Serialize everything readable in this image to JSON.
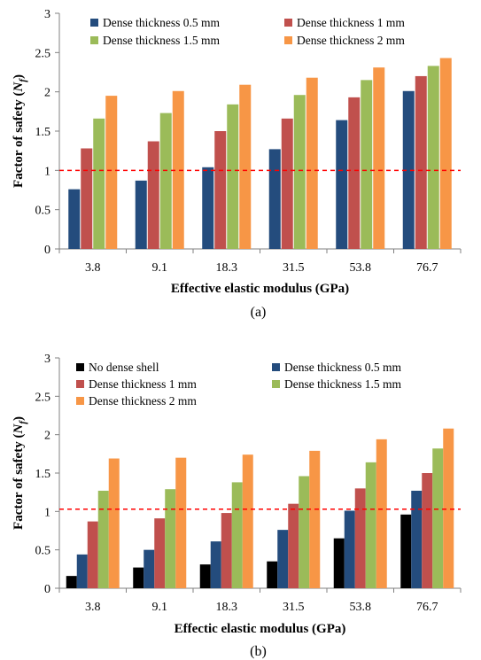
{
  "chart_data": [
    {
      "type": "bar",
      "title": "",
      "caption": "(a)",
      "xlabel": "Effective elastic modulus (GPa)",
      "ylabel_main": "Factor of safety (",
      "ylabel_symbol": "N",
      "ylabel_sub": "f",
      "ylabel_end": ")",
      "ylim": [
        0,
        3
      ],
      "yticks": [
        "0",
        "0.5",
        "1",
        "1.5",
        "2",
        "2.5",
        "3"
      ],
      "categories": [
        "3.8",
        "9.1",
        "18.3",
        "31.5",
        "53.8",
        "76.7"
      ],
      "reference_line": 1.0,
      "legend_position": "top",
      "series": [
        {
          "name": "Dense thickness 0.5 mm",
          "color": "#244C7D",
          "values": [
            0.76,
            0.87,
            1.04,
            1.27,
            1.64,
            2.01
          ]
        },
        {
          "name": "Dense thickness 1 mm",
          "color": "#C0504D",
          "values": [
            1.28,
            1.37,
            1.5,
            1.66,
            1.93,
            2.2
          ]
        },
        {
          "name": "Dense thickness 1.5 mm",
          "color": "#9BBB59",
          "values": [
            1.66,
            1.73,
            1.84,
            1.96,
            2.15,
            2.33
          ]
        },
        {
          "name": "Dense thickness 2 mm",
          "color": "#F79646",
          "values": [
            1.95,
            2.01,
            2.09,
            2.18,
            2.31,
            2.43
          ]
        }
      ]
    },
    {
      "type": "bar",
      "title": "",
      "caption": "(b)",
      "xlabel": "Effectic elastic modulus (GPa)",
      "ylabel_main": "Factor of safety (",
      "ylabel_symbol": "N",
      "ylabel_sub": "f",
      "ylabel_end": ")",
      "ylim": [
        0,
        3
      ],
      "yticks": [
        "0",
        "0.5",
        "1",
        "1.5",
        "2",
        "2.5",
        "3"
      ],
      "categories": [
        "3.8",
        "9.1",
        "18.3",
        "31.5",
        "53.8",
        "76.7"
      ],
      "reference_line": 1.03,
      "legend_position": "top",
      "series": [
        {
          "name": "No dense shell",
          "color": "#000000",
          "values": [
            0.16,
            0.27,
            0.31,
            0.35,
            0.65,
            0.96
          ]
        },
        {
          "name": "Dense thickness 0.5 mm",
          "color": "#244C7D",
          "values": [
            0.44,
            0.5,
            0.61,
            0.76,
            1.01,
            1.27
          ]
        },
        {
          "name": "Dense thickness 1 mm",
          "color": "#C0504D",
          "values": [
            0.87,
            0.91,
            0.98,
            1.1,
            1.3,
            1.5
          ]
        },
        {
          "name": "Dense thickness 1.5 mm",
          "color": "#9BBB59",
          "values": [
            1.27,
            1.29,
            1.38,
            1.46,
            1.64,
            1.82
          ]
        },
        {
          "name": "Dense thickness 2 mm",
          "color": "#F79646",
          "values": [
            1.69,
            1.7,
            1.74,
            1.79,
            1.94,
            2.08
          ]
        }
      ]
    }
  ]
}
